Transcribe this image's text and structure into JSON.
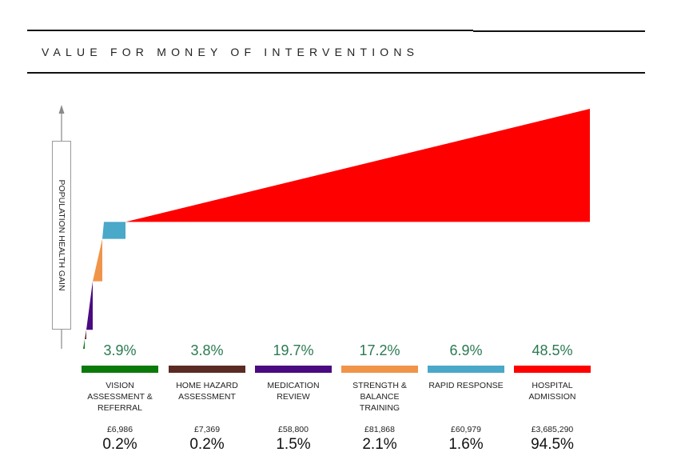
{
  "title": "VALUE FOR MONEY OF INTERVENTIONS",
  "chart_data": {
    "type": "area",
    "title": "VALUE FOR MONEY OF INTERVENTIONS",
    "ylabel": "POPULATION HEALTH GAIN",
    "xlabel": "",
    "series": [
      {
        "name": "VISION ASSESSMENT & REFERRAL",
        "health_gain_pct": 3.9,
        "cost": "£6,986",
        "cost_value": 6986,
        "cost_pct": 0.2,
        "color": "#0a7a0a"
      },
      {
        "name": "HOME HAZARD ASSESSMENT",
        "health_gain_pct": 3.8,
        "cost": "£7,369",
        "cost_value": 7369,
        "cost_pct": 0.2,
        "color": "#5c2a24"
      },
      {
        "name": "MEDICATION REVIEW",
        "health_gain_pct": 19.7,
        "cost": "£58,800",
        "cost_value": 58800,
        "cost_pct": 1.5,
        "color": "#4a0a80"
      },
      {
        "name": "STRENGTH & BALANCE TRAINING",
        "health_gain_pct": 17.2,
        "cost": "£81,868",
        "cost_value": 81868,
        "cost_pct": 2.1,
        "color": "#f0944a"
      },
      {
        "name": "RAPID RESPONSE",
        "health_gain_pct": 6.9,
        "cost": "£60,979",
        "cost_value": 60979,
        "cost_pct": 1.6,
        "color": "#4aa8c8"
      },
      {
        "name": "HOSPITAL ADMISSION",
        "health_gain_pct": 48.5,
        "cost": "£3,685,290",
        "cost_value": 3685290,
        "cost_pct": 94.5,
        "color": "#ff0000"
      }
    ],
    "x_axis": "cumulative cost",
    "y_axis": "cumulative population health gain",
    "grid": false,
    "legend": "bottom"
  },
  "labels": [
    {
      "gain": "3.9%",
      "name": "VISION ASSESSMENT & REFERRAL",
      "cost": "£6,986",
      "cost_share": "0.2%"
    },
    {
      "gain": "3.8%",
      "name": "HOME HAZARD ASSESSMENT",
      "cost": "£7,369",
      "cost_share": "0.2%"
    },
    {
      "gain": "19.7%",
      "name": "MEDICATION REVIEW",
      "cost": "£58,800",
      "cost_share": "1.5%"
    },
    {
      "gain": "17.2%",
      "name": "STRENGTH & BALANCE TRAINING",
      "cost": "£81,868",
      "cost_share": "2.1%"
    },
    {
      "gain": "6.9%",
      "name": "RAPID RESPONSE",
      "cost": "£60,979",
      "cost_share": "1.6%"
    },
    {
      "gain": "48.5%",
      "name": "HOSPITAL ADMISSION",
      "cost": "£3,685,290",
      "cost_share": "94.5%"
    }
  ]
}
